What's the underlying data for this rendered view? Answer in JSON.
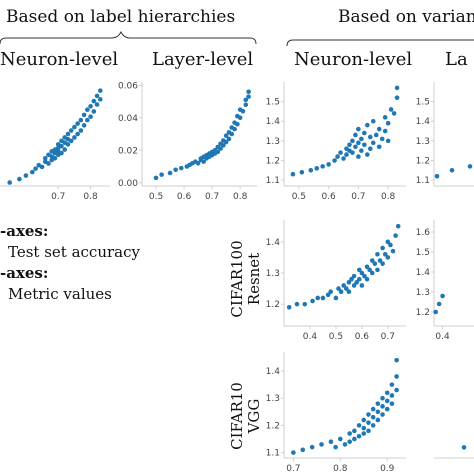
{
  "headers": {
    "left": "Based on label hierarchies",
    "right": "Based on varian"
  },
  "columns": [
    "Neuron-level",
    "Layer-level",
    "Neuron-level",
    "La"
  ],
  "rows": [
    {
      "line1": "CIFAR100",
      "line2": "Resnet"
    },
    {
      "line1": "CIFAR10",
      "line2": "VGG"
    }
  ],
  "legend": {
    "x_title": "-axes:",
    "x_text": "Test set accuracy",
    "y_title": "-axes:",
    "y_text": "Metric values"
  },
  "colors": {
    "points": "#1f77b4",
    "axis": "#cfcfcf",
    "tick_text": "#444444"
  },
  "chart_data": [
    {
      "type": "scatter",
      "name": "row1-col1",
      "xticks": [
        "0.7",
        "0.8"
      ],
      "xtick_vals": [
        0.7,
        0.8
      ],
      "yticks": [],
      "ytick_vals": [],
      "xlim": [
        0.52,
        0.86
      ],
      "ylim": [
        0.0,
        0.06
      ],
      "x": [
        0.55,
        0.58,
        0.6,
        0.62,
        0.63,
        0.64,
        0.65,
        0.66,
        0.66,
        0.67,
        0.67,
        0.68,
        0.68,
        0.68,
        0.69,
        0.69,
        0.69,
        0.7,
        0.7,
        0.7,
        0.7,
        0.71,
        0.71,
        0.71,
        0.72,
        0.72,
        0.72,
        0.73,
        0.73,
        0.73,
        0.74,
        0.74,
        0.75,
        0.75,
        0.76,
        0.76,
        0.77,
        0.77,
        0.78,
        0.78,
        0.79,
        0.79,
        0.8,
        0.8,
        0.81,
        0.81,
        0.82,
        0.82,
        0.83,
        0.83
      ],
      "y": [
        0.002,
        0.004,
        0.006,
        0.008,
        0.01,
        0.012,
        0.011,
        0.014,
        0.016,
        0.013,
        0.018,
        0.015,
        0.02,
        0.017,
        0.016,
        0.021,
        0.019,
        0.018,
        0.022,
        0.024,
        0.02,
        0.019,
        0.023,
        0.026,
        0.021,
        0.025,
        0.028,
        0.024,
        0.027,
        0.03,
        0.026,
        0.032,
        0.028,
        0.034,
        0.03,
        0.036,
        0.032,
        0.038,
        0.035,
        0.041,
        0.038,
        0.044,
        0.04,
        0.046,
        0.043,
        0.049,
        0.047,
        0.052,
        0.05,
        0.055
      ]
    },
    {
      "type": "scatter",
      "name": "row1-col2",
      "xticks": [
        "0.5",
        "0.6",
        "0.7",
        "0.8"
      ],
      "xtick_vals": [
        0.5,
        0.6,
        0.7,
        0.8
      ],
      "yticks": [
        "0.00",
        "0.02",
        "0.04",
        "0.06"
      ],
      "ytick_vals": [
        0.0,
        0.02,
        0.04,
        0.06
      ],
      "xlim": [
        0.45,
        0.86
      ],
      "ylim": [
        -0.002,
        0.062
      ],
      "x": [
        0.5,
        0.52,
        0.55,
        0.57,
        0.59,
        0.61,
        0.62,
        0.63,
        0.64,
        0.65,
        0.66,
        0.66,
        0.67,
        0.67,
        0.68,
        0.68,
        0.69,
        0.69,
        0.7,
        0.7,
        0.71,
        0.71,
        0.72,
        0.72,
        0.73,
        0.73,
        0.74,
        0.74,
        0.75,
        0.75,
        0.76,
        0.76,
        0.77,
        0.77,
        0.78,
        0.78,
        0.79,
        0.79,
        0.8,
        0.8,
        0.81,
        0.82,
        0.82,
        0.83,
        0.83
      ],
      "y": [
        0.003,
        0.005,
        0.006,
        0.008,
        0.009,
        0.01,
        0.011,
        0.012,
        0.013,
        0.012,
        0.014,
        0.015,
        0.013,
        0.016,
        0.015,
        0.017,
        0.016,
        0.018,
        0.017,
        0.019,
        0.018,
        0.02,
        0.019,
        0.022,
        0.021,
        0.024,
        0.023,
        0.026,
        0.025,
        0.029,
        0.027,
        0.031,
        0.03,
        0.034,
        0.033,
        0.037,
        0.036,
        0.041,
        0.04,
        0.045,
        0.044,
        0.048,
        0.051,
        0.053,
        0.056
      ]
    },
    {
      "type": "scatter",
      "name": "row1-col3",
      "xticks": [
        "0.5",
        "0.6",
        "0.7",
        "0.8"
      ],
      "xtick_vals": [
        0.5,
        0.6,
        0.7,
        0.8
      ],
      "yticks": [
        "1.1",
        "1.2",
        "1.3",
        "1.4",
        "1.5"
      ],
      "ytick_vals": [
        1.1,
        1.2,
        1.3,
        1.4,
        1.5
      ],
      "xlim": [
        0.45,
        0.86
      ],
      "ylim": [
        1.07,
        1.6
      ],
      "x": [
        0.48,
        0.51,
        0.54,
        0.56,
        0.58,
        0.6,
        0.62,
        0.63,
        0.64,
        0.65,
        0.66,
        0.66,
        0.67,
        0.67,
        0.68,
        0.68,
        0.69,
        0.69,
        0.7,
        0.7,
        0.7,
        0.71,
        0.71,
        0.72,
        0.72,
        0.73,
        0.73,
        0.74,
        0.74,
        0.75,
        0.75,
        0.76,
        0.77,
        0.77,
        0.78,
        0.79,
        0.79,
        0.8,
        0.8,
        0.81,
        0.82,
        0.83,
        0.83
      ],
      "y": [
        1.13,
        1.14,
        1.15,
        1.16,
        1.17,
        1.18,
        1.2,
        1.22,
        1.24,
        1.21,
        1.26,
        1.23,
        1.28,
        1.25,
        1.3,
        1.24,
        1.33,
        1.27,
        1.22,
        1.29,
        1.36,
        1.25,
        1.31,
        1.28,
        1.34,
        1.23,
        1.38,
        1.26,
        1.32,
        1.29,
        1.4,
        1.33,
        1.27,
        1.36,
        1.31,
        1.35,
        1.42,
        1.39,
        1.3,
        1.46,
        1.44,
        1.52,
        1.57
      ]
    },
    {
      "type": "scatter",
      "name": "row1-col4",
      "xticks": [],
      "xtick_vals": [],
      "yticks": [
        "1.1",
        "1.2",
        "1.3",
        "1.4",
        "1.5"
      ],
      "ytick_vals": [
        1.1,
        1.2,
        1.3,
        1.4,
        1.5
      ],
      "xlim": [
        0.0,
        1.0
      ],
      "ylim": [
        1.07,
        1.6
      ],
      "x": [
        0.05,
        0.3,
        0.6
      ],
      "y": [
        1.12,
        1.15,
        1.17
      ]
    },
    {
      "type": "scatter",
      "name": "row2-col3",
      "xticks": [
        "0.4",
        "0.5",
        "0.6",
        "0.7"
      ],
      "xtick_vals": [
        0.4,
        0.5,
        0.6,
        0.7
      ],
      "yticks": [
        "1.2",
        "1.3",
        "1.4"
      ],
      "ytick_vals": [
        1.2,
        1.3,
        1.4
      ],
      "xlim": [
        0.3,
        0.77
      ],
      "ylim": [
        1.13,
        1.47
      ],
      "x": [
        0.32,
        0.35,
        0.38,
        0.41,
        0.43,
        0.45,
        0.47,
        0.48,
        0.5,
        0.51,
        0.52,
        0.53,
        0.54,
        0.55,
        0.55,
        0.56,
        0.57,
        0.57,
        0.58,
        0.59,
        0.59,
        0.6,
        0.6,
        0.61,
        0.62,
        0.62,
        0.63,
        0.64,
        0.64,
        0.65,
        0.66,
        0.66,
        0.67,
        0.68,
        0.68,
        0.69,
        0.7,
        0.7,
        0.71,
        0.72,
        0.73,
        0.74
      ],
      "y": [
        1.19,
        1.2,
        1.2,
        1.21,
        1.22,
        1.22,
        1.23,
        1.24,
        1.22,
        1.25,
        1.24,
        1.26,
        1.25,
        1.27,
        1.24,
        1.28,
        1.26,
        1.29,
        1.27,
        1.28,
        1.31,
        1.26,
        1.3,
        1.29,
        1.32,
        1.28,
        1.31,
        1.3,
        1.34,
        1.33,
        1.31,
        1.36,
        1.34,
        1.33,
        1.38,
        1.36,
        1.35,
        1.4,
        1.39,
        1.37,
        1.42,
        1.45
      ]
    },
    {
      "type": "scatter",
      "name": "row2-col4",
      "xticks": [
        "0.4"
      ],
      "xtick_vals": [
        0.4
      ],
      "yticks": [
        "1.2",
        "1.3",
        "1.4",
        "1.5",
        "1.6"
      ],
      "ytick_vals": [
        1.2,
        1.3,
        1.4,
        1.5,
        1.6
      ],
      "xlim": [
        0.3,
        1.0
      ],
      "ylim": [
        1.13,
        1.66
      ],
      "x": [
        0.32,
        0.36,
        0.4
      ],
      "y": [
        1.2,
        1.24,
        1.28
      ]
    },
    {
      "type": "scatter",
      "name": "row3-col3",
      "xticks": [
        "0.7",
        "0.8",
        "0.9"
      ],
      "xtick_vals": [
        0.7,
        0.8,
        0.9
      ],
      "yticks": [
        "1.1",
        "1.2",
        "1.3",
        "1.4"
      ],
      "ytick_vals": [
        1.1,
        1.2,
        1.3,
        1.4
      ],
      "xlim": [
        0.68,
        0.94
      ],
      "ylim": [
        1.08,
        1.47
      ],
      "x": [
        0.7,
        0.72,
        0.74,
        0.76,
        0.78,
        0.79,
        0.8,
        0.81,
        0.82,
        0.82,
        0.83,
        0.83,
        0.84,
        0.84,
        0.85,
        0.85,
        0.85,
        0.86,
        0.86,
        0.86,
        0.87,
        0.87,
        0.87,
        0.88,
        0.88,
        0.88,
        0.89,
        0.89,
        0.89,
        0.9,
        0.9,
        0.9,
        0.91,
        0.91,
        0.91,
        0.92,
        0.92,
        0.92
      ],
      "y": [
        1.1,
        1.11,
        1.12,
        1.13,
        1.14,
        1.12,
        1.15,
        1.13,
        1.17,
        1.14,
        1.18,
        1.15,
        1.2,
        1.16,
        1.22,
        1.17,
        1.19,
        1.24,
        1.18,
        1.21,
        1.26,
        1.2,
        1.23,
        1.28,
        1.22,
        1.25,
        1.3,
        1.24,
        1.27,
        1.32,
        1.26,
        1.29,
        1.35,
        1.28,
        1.31,
        1.38,
        1.33,
        1.44
      ]
    },
    {
      "type": "scatter",
      "name": "row3-col4",
      "xticks": [],
      "xtick_vals": [],
      "yticks": [],
      "ytick_vals": [],
      "xlim": [
        0.0,
        1.0
      ],
      "ylim": [
        0.0,
        1.0
      ],
      "x": [
        0.5,
        0.75
      ],
      "y": [
        0.1,
        0.45
      ]
    }
  ]
}
